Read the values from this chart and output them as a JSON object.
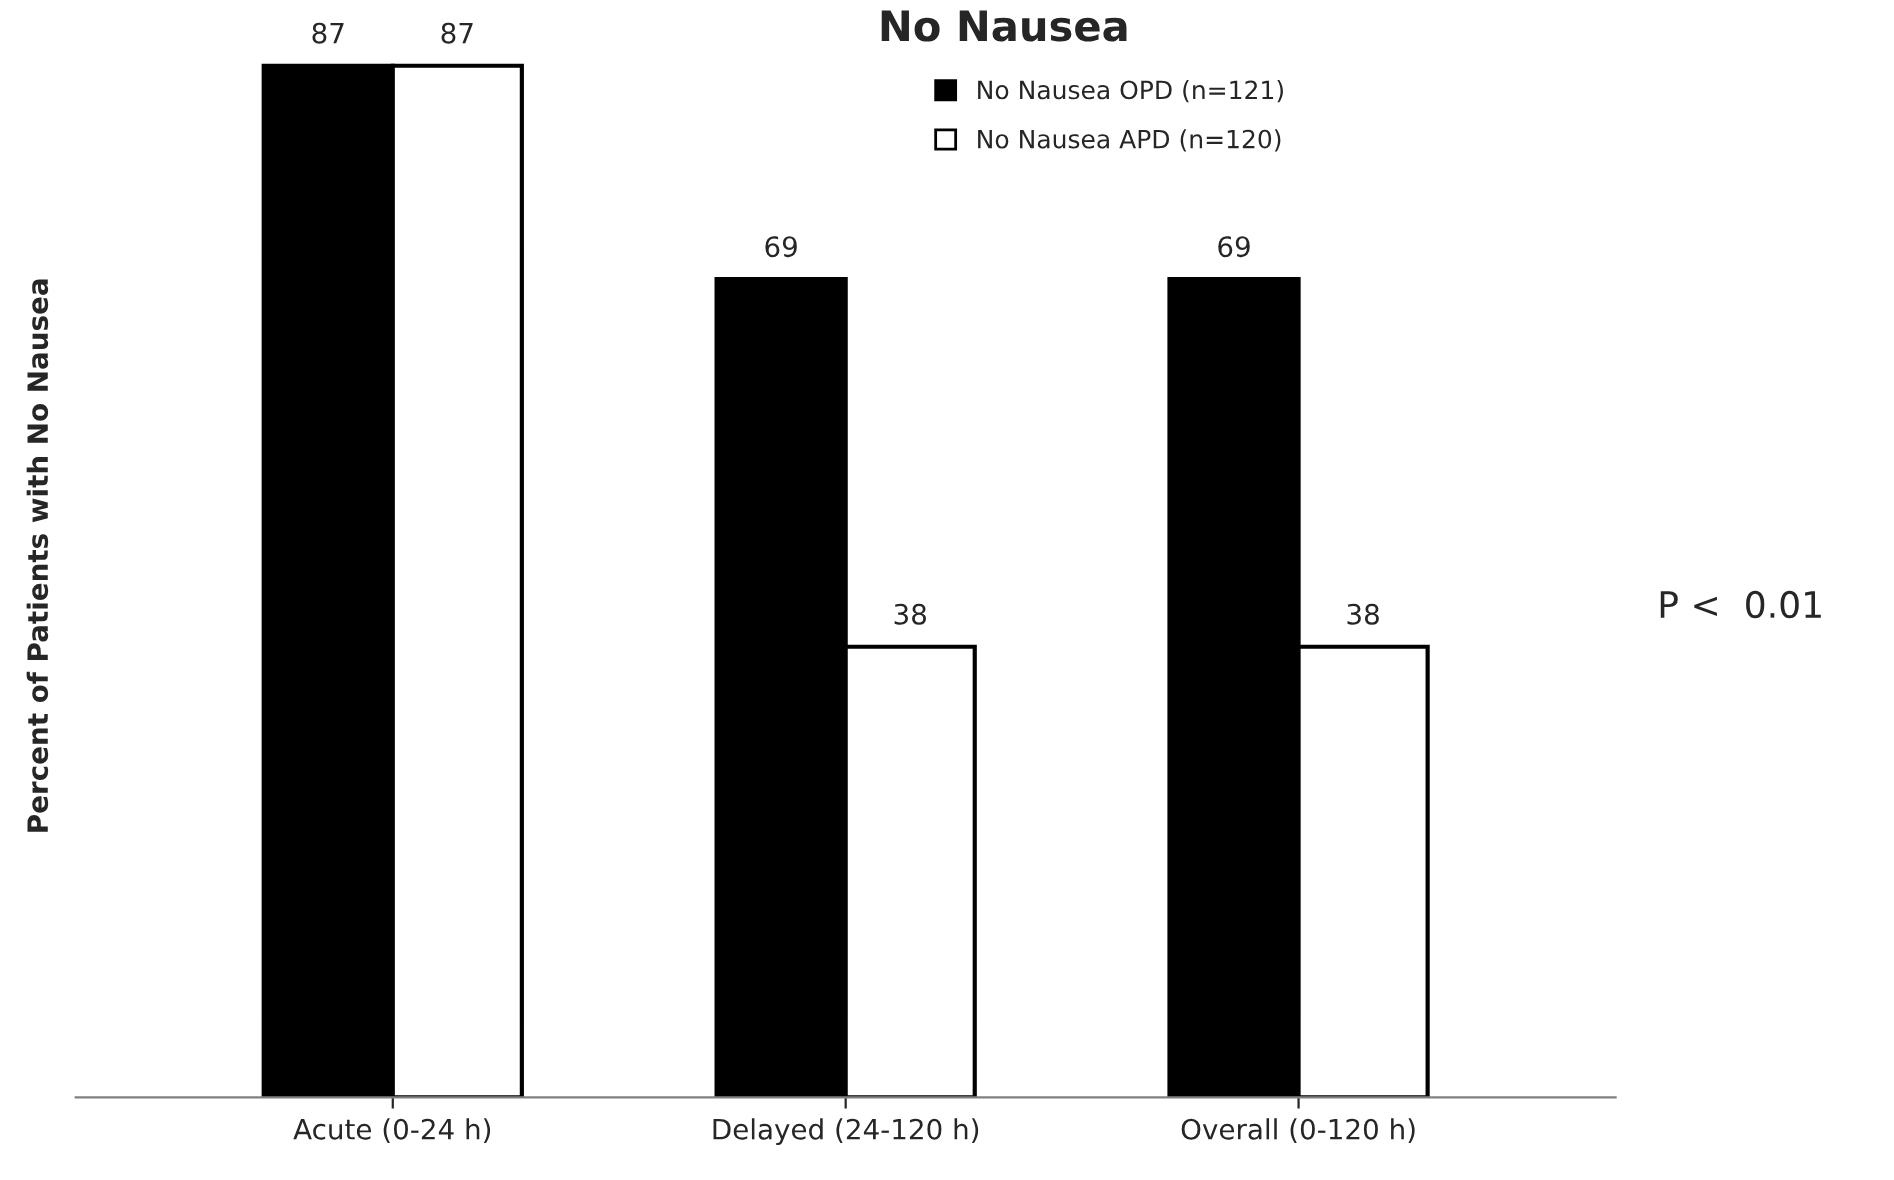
{
  "chart_data": {
    "type": "bar",
    "title": "No Nausea",
    "ylabel": "Percent of Patients with No Nausea",
    "categories": [
      "Acute (0-24 h)",
      "Delayed (24-120 h)",
      "Overall (0-120 h)"
    ],
    "series": [
      {
        "name": "No Nausea OPD (n=121)",
        "color": "#000000",
        "values": [
          87,
          69,
          69
        ]
      },
      {
        "name": "No Nausea APD (n=120)",
        "color": "#ffffff",
        "values": [
          87,
          38,
          38
        ]
      }
    ],
    "data_labels": true,
    "legend": "top right",
    "grid": false,
    "tick_labels": "x",
    "annotations": [
      "P <  0.01"
    ]
  }
}
